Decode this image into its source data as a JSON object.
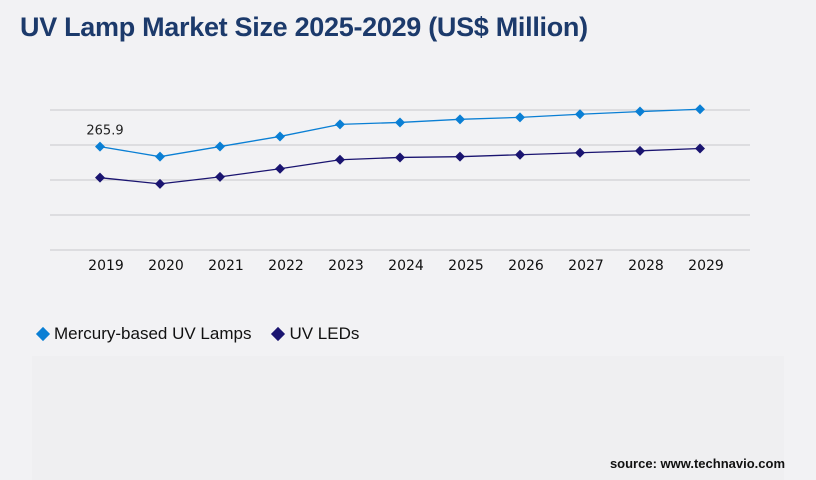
{
  "title": "UV Lamp Market Size 2025-2029 (US$ Million)",
  "source": "source: www.technavio.com",
  "chart_data": {
    "type": "line",
    "title": "UV Lamp Market Size 2025-2029 (US$ Million)",
    "categories": [
      "2019",
      "2020",
      "2021",
      "2022",
      "2023",
      "2024",
      "2025",
      "2026",
      "2027",
      "2028",
      "2029"
    ],
    "series": [
      {
        "name": "Mercury-based UV Lamps",
        "color": "#0a7fd4",
        "values": [
          265.9,
          240,
          266,
          292,
          323,
          328,
          336,
          341,
          349,
          356,
          362
        ]
      },
      {
        "name": "UV LEDs",
        "color": "#1a1470",
        "values": [
          186,
          170,
          188,
          209,
          232,
          238,
          240,
          245,
          250,
          255,
          261
        ]
      }
    ],
    "data_labels": [
      {
        "series": 0,
        "index": 0,
        "text": "265.9"
      }
    ],
    "ylim": [
      0,
      360
    ],
    "grid": true,
    "y_tick_labels_shown": false,
    "legend_position": "bottom-left"
  }
}
